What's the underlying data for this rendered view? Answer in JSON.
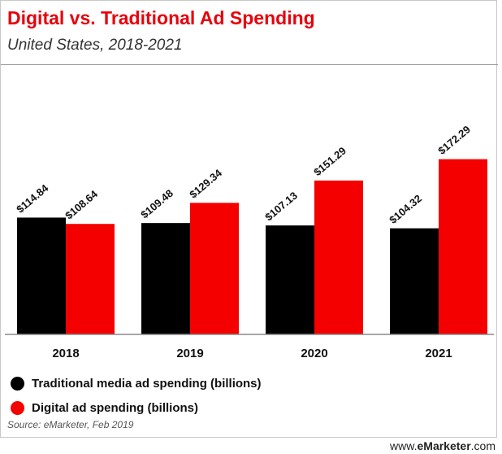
{
  "chart_data": {
    "type": "bar",
    "title": "Digital vs. Traditional Ad Spending",
    "subtitle": "United States, 2018-2021",
    "categories": [
      "2018",
      "2019",
      "2020",
      "2021"
    ],
    "series": [
      {
        "name": "Traditional media ad spending (billions)",
        "color": "#000000",
        "values": [
          114.84,
          109.48,
          107.13,
          104.32
        ],
        "labels": [
          "$114.84",
          "$109.48",
          "$107.13",
          "$104.32"
        ]
      },
      {
        "name": "Digital ad spending (billions)",
        "color": "#f50000",
        "values": [
          108.64,
          129.34,
          151.29,
          172.29
        ],
        "labels": [
          "$108.64",
          "$129.34",
          "$151.29",
          "$172.29"
        ]
      }
    ],
    "xlabel": "",
    "ylabel": "",
    "ylim": [
      0,
      180
    ],
    "grid": false,
    "legend_position": "bottom-left"
  },
  "source": "Source: eMarketer, Feb 2019",
  "watermark": {
    "prefix": "www.",
    "brand": "eMarketer",
    "suffix": ".com"
  }
}
